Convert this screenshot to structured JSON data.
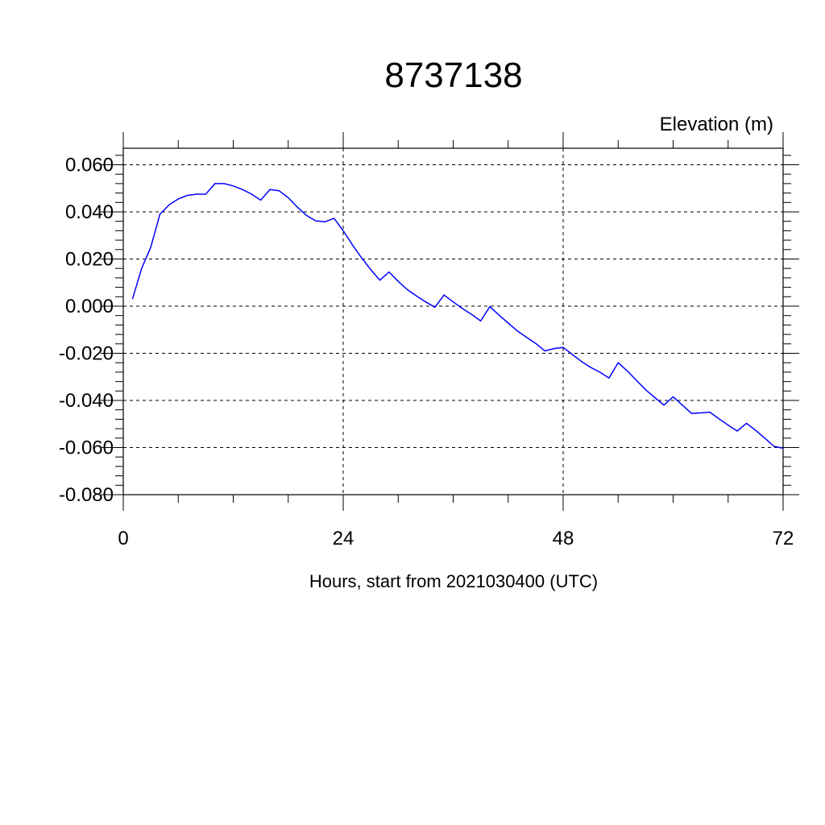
{
  "chart_data": {
    "type": "line",
    "title": "8737138",
    "ylabel": "Elevation (m)",
    "xlabel": "Hours, start from 2021030400 (UTC)",
    "xlim": [
      0,
      72
    ],
    "ylim": [
      -0.08,
      0.067
    ],
    "x_ticks": [
      0,
      24,
      48,
      72
    ],
    "x_tick_labels": [
      "0",
      "24",
      "48",
      "72"
    ],
    "y_ticks": [
      0.06,
      0.04,
      0.02,
      0.0,
      -0.02,
      -0.04,
      -0.06,
      -0.08
    ],
    "y_tick_labels": [
      "0.060",
      "0.040",
      "0.020",
      "0.000",
      "-0.020",
      "-0.040",
      "-0.060",
      "-0.080"
    ],
    "grid": "dashed",
    "series": [
      {
        "color": "#0000ff",
        "x": [
          1,
          2,
          3,
          4,
          5,
          6,
          7,
          8,
          9,
          10,
          11,
          12,
          13,
          14,
          15,
          16,
          17,
          18,
          19,
          20,
          21,
          22,
          23,
          24,
          25,
          26,
          27,
          28,
          29,
          30,
          31,
          32,
          33,
          34,
          35,
          36,
          37,
          38,
          39,
          40,
          41,
          42,
          43,
          44,
          45,
          46,
          47,
          48,
          49,
          50,
          51,
          52,
          53,
          54,
          55,
          56,
          57,
          58,
          59,
          60,
          61,
          62,
          63,
          64,
          65,
          66,
          67,
          68,
          69,
          70,
          71,
          72
        ],
        "values": [
          0.003,
          0.016,
          0.025,
          0.039,
          0.043,
          0.0455,
          0.047,
          0.0475,
          0.0475,
          0.052,
          0.052,
          0.051,
          0.0495,
          0.0475,
          0.045,
          0.0495,
          0.049,
          0.046,
          0.042,
          0.0385,
          0.0362,
          0.0358,
          0.0373,
          0.032,
          0.026,
          0.0205,
          0.0155,
          0.011,
          0.0145,
          0.0105,
          0.007,
          0.0043,
          0.0018,
          -0.0005,
          0.0047,
          0.0018,
          -0.001,
          -0.0035,
          -0.0063,
          -0.0002,
          -0.0038,
          -0.0072,
          -0.0105,
          -0.0132,
          -0.0158,
          -0.019,
          -0.018,
          -0.0175,
          -0.0205,
          -0.0235,
          -0.026,
          -0.028,
          -0.0305,
          -0.024,
          -0.0275,
          -0.0315,
          -0.0355,
          -0.0388,
          -0.042,
          -0.0385,
          -0.042,
          -0.0455,
          -0.0453,
          -0.045,
          -0.0478,
          -0.0505,
          -0.053,
          -0.0497,
          -0.0527,
          -0.056,
          -0.0595,
          -0.0603
        ]
      }
    ]
  }
}
